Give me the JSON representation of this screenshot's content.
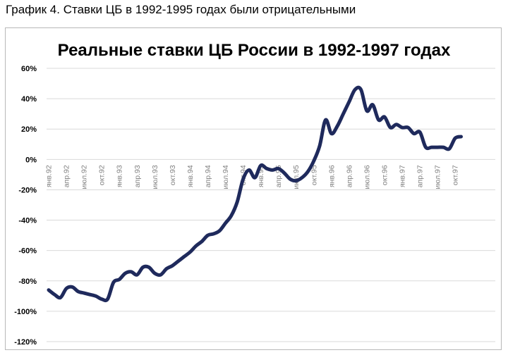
{
  "heading": "График 4. Ставки ЦБ в 1992-1995  годах были отрицательными",
  "chart_data": {
    "type": "line",
    "title": "Реальные ставки ЦБ России в 1992-1997 годах",
    "xlabel": "",
    "ylabel": "",
    "ylim": [
      -120,
      60
    ],
    "yticks": [
      -120,
      -100,
      -80,
      -60,
      -40,
      -20,
      0,
      20,
      40,
      60
    ],
    "ytick_labels": [
      "-120%",
      "-100%",
      "-80%",
      "-60%",
      "-40%",
      "-20%",
      "0%",
      "20%",
      "40%",
      "60%"
    ],
    "grid": true,
    "xtick_labels": [
      "янв.92",
      "апр.92",
      "июл.92",
      "окт.92",
      "янв.93",
      "апр.93",
      "июл.93",
      "окт.93",
      "янв.94",
      "апр.94",
      "июл.94",
      "окт.94",
      "янв.95",
      "апр.95",
      "июл.95",
      "окт.95",
      "янв.96",
      "апр.96",
      "июл.96",
      "окт.96",
      "янв.97",
      "апр.97",
      "июл.97",
      "окт.97"
    ],
    "line_color": "#1f2a5c",
    "series": [
      {
        "points": [
          [
            "1992-01",
            -86
          ],
          [
            "1992-02",
            -89
          ],
          [
            "1992-03",
            -91
          ],
          [
            "1992-04",
            -85
          ],
          [
            "1992-05",
            -84
          ],
          [
            "1992-06",
            -87
          ],
          [
            "1992-07",
            -88
          ],
          [
            "1992-08",
            -89
          ],
          [
            "1992-09",
            -90
          ],
          [
            "1992-10",
            -92
          ],
          [
            "1992-11",
            -92
          ],
          [
            "1992-12",
            -81
          ],
          [
            "1993-01",
            -79
          ],
          [
            "1993-02",
            -75
          ],
          [
            "1993-03",
            -74
          ],
          [
            "1993-04",
            -76
          ],
          [
            "1993-05",
            -71
          ],
          [
            "1993-06",
            -71
          ],
          [
            "1993-07",
            -75
          ],
          [
            "1993-08",
            -76
          ],
          [
            "1993-09",
            -72
          ],
          [
            "1993-10",
            -70
          ],
          [
            "1993-11",
            -67
          ],
          [
            "1993-12",
            -64
          ],
          [
            "1994-01",
            -61
          ],
          [
            "1994-02",
            -57
          ],
          [
            "1994-03",
            -54
          ],
          [
            "1994-04",
            -50
          ],
          [
            "1994-05",
            -49
          ],
          [
            "1994-06",
            -47
          ],
          [
            "1994-07",
            -42
          ],
          [
            "1994-08",
            -37
          ],
          [
            "1994-09",
            -28
          ],
          [
            "1994-10",
            -13
          ],
          [
            "1994-11",
            -7
          ],
          [
            "1994-12",
            -12
          ],
          [
            "1995-01",
            -4
          ],
          [
            "1995-02",
            -6
          ],
          [
            "1995-03",
            -7
          ],
          [
            "1995-04",
            -6
          ],
          [
            "1995-05",
            -9
          ],
          [
            "1995-06",
            -13
          ],
          [
            "1995-07",
            -14
          ],
          [
            "1995-08",
            -12
          ],
          [
            "1995-09",
            -8
          ],
          [
            "1995-10",
            -1
          ],
          [
            "1995-11",
            9
          ],
          [
            "1995-12",
            26
          ],
          [
            "1996-01",
            17
          ],
          [
            "1996-02",
            22
          ],
          [
            "1996-03",
            30
          ],
          [
            "1996-04",
            38
          ],
          [
            "1996-05",
            46
          ],
          [
            "1996-06",
            46
          ],
          [
            "1996-07",
            32
          ],
          [
            "1996-08",
            36
          ],
          [
            "1996-09",
            26
          ],
          [
            "1996-10",
            28
          ],
          [
            "1996-11",
            21
          ],
          [
            "1996-12",
            23
          ],
          [
            "1997-01",
            21
          ],
          [
            "1997-02",
            21
          ],
          [
            "1997-03",
            17
          ],
          [
            "1997-04",
            18
          ],
          [
            "1997-05",
            8
          ],
          [
            "1997-06",
            8
          ],
          [
            "1997-07",
            8
          ],
          [
            "1997-08",
            8
          ],
          [
            "1997-09",
            7
          ],
          [
            "1997-10",
            14
          ],
          [
            "1997-11",
            15
          ]
        ]
      }
    ]
  }
}
